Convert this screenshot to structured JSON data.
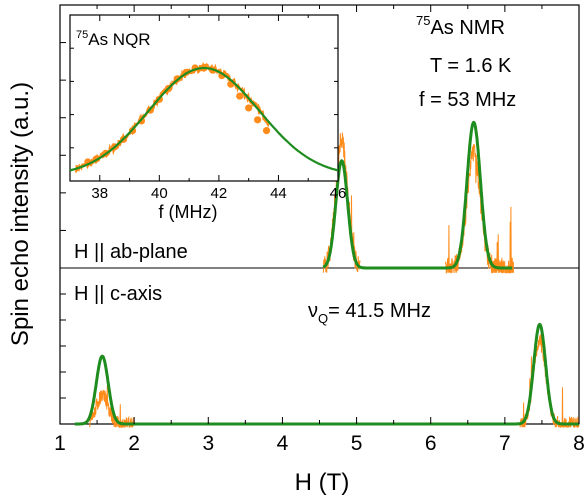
{
  "chart_data": [
    {
      "type": "line",
      "xlabel": "H (T)",
      "ylabel": "Spin echo intensity (a.u.)",
      "xlim": [
        1,
        8
      ],
      "xticks": [
        "1",
        "2",
        "3",
        "4",
        "5",
        "6",
        "7",
        "8"
      ],
      "annotations": {
        "nucleus_sup": "75",
        "nucleus_main": "As NMR",
        "temperature": "T = 1.6 K",
        "frequency": "f = 53 MHz",
        "panel_top": "H || ab-plane",
        "panel_bottom": "H || c-axis",
        "nuq_symbol": "ν",
        "nuq_sub": "Q",
        "nuq_value": "= 41.5 MHz"
      },
      "panels": [
        {
          "name": "H || ab-plane",
          "data_ranges": [
            [
              4.55,
              5.05
            ],
            [
              6.2,
              7.12
            ]
          ],
          "peaks": [
            {
              "center": 4.8,
              "exp_height": 0.8,
              "fit_height": 0.67,
              "width": 0.08
            },
            {
              "center": 6.58,
              "exp_height": 0.72,
              "fit_height": 0.91,
              "width": 0.09
            }
          ],
          "fit_range": [
            4.55,
            7.1
          ]
        },
        {
          "name": "H || c-axis",
          "data_ranges": [
            [
              1.4,
              2.0
            ],
            [
              7.2,
              8.0
            ]
          ],
          "peaks": [
            {
              "center": 1.57,
              "exp_height": 0.27,
              "fit_height": 0.64,
              "width": 0.08
            },
            {
              "center": 7.47,
              "exp_height": 0.8,
              "fit_height": 0.94,
              "width": 0.08
            }
          ],
          "fit_range": [
            1.2,
            8.0
          ]
        }
      ],
      "colors": {
        "data": "#ff8c1a",
        "fit": "#1e8c1e"
      }
    },
    {
      "type": "scatter",
      "title_sup": "75",
      "title_main": "As NQR",
      "xlabel": "f  (MHz)",
      "xlim": [
        37,
        46
      ],
      "xticks": [
        "38",
        "40",
        "42",
        "44",
        "46"
      ],
      "fit": {
        "center": 41.5,
        "sigma": 1.85
      },
      "x": [
        37.6,
        37.9,
        38.2,
        38.5,
        38.8,
        39.1,
        39.4,
        39.7,
        40.0,
        40.3,
        40.6,
        40.9,
        41.2,
        41.5,
        41.8,
        42.1,
        42.4,
        42.7,
        43.0,
        43.3,
        43.6
      ],
      "y": [
        0.13,
        0.16,
        0.21,
        0.27,
        0.34,
        0.42,
        0.51,
        0.61,
        0.71,
        0.81,
        0.9,
        0.96,
        1.0,
        1.0,
        0.98,
        0.93,
        0.85,
        0.74,
        0.63,
        0.52,
        0.42
      ],
      "colors": {
        "points": "#ff8c1a",
        "fit": "#1e8c1e"
      }
    }
  ]
}
